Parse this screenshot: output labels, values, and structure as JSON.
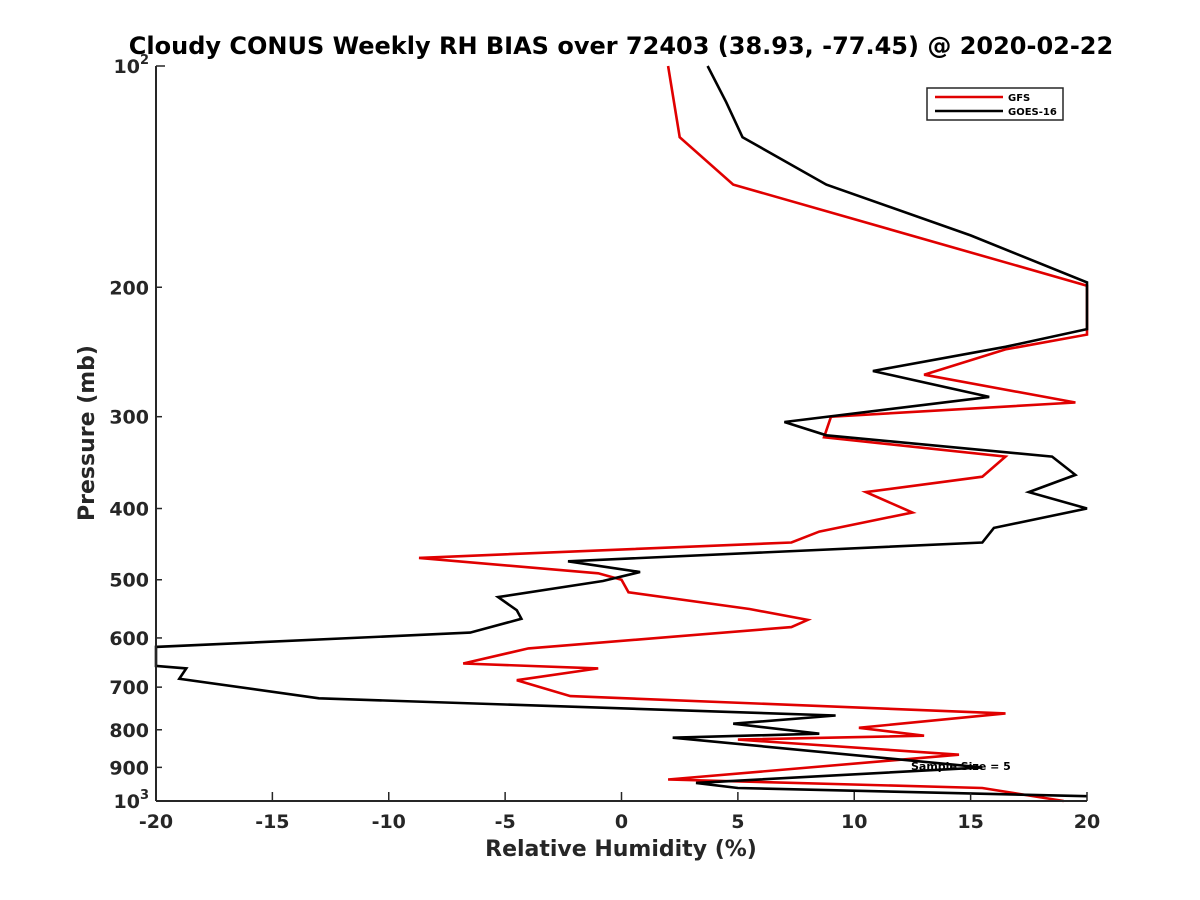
{
  "chart_data": {
    "type": "line",
    "title": "Cloudy CONUS Weekly RH BIAS over 72403 (38.93, -77.45) @ 2020-02-22",
    "xlabel": "Relative Humidity (%)",
    "ylabel": "Pressure (mb)",
    "xlim": [
      -20,
      20
    ],
    "ylim": [
      100,
      1000
    ],
    "y_scale": "log",
    "y_reversed": true,
    "grid": false,
    "legend_position": "top-right",
    "x_ticks": [
      {
        "value": -20,
        "label": "-20"
      },
      {
        "value": -15,
        "label": "-15"
      },
      {
        "value": -10,
        "label": "-10"
      },
      {
        "value": -5,
        "label": "-5"
      },
      {
        "value": 0,
        "label": "0"
      },
      {
        "value": 5,
        "label": "5"
      },
      {
        "value": 10,
        "label": "10"
      },
      {
        "value": 15,
        "label": "15"
      },
      {
        "value": 20,
        "label": "20"
      }
    ],
    "y_ticks": [
      {
        "value": 100,
        "base": "10",
        "exp": "2"
      },
      {
        "value": 200,
        "base": "200",
        "exp": ""
      },
      {
        "value": 300,
        "base": "300",
        "exp": ""
      },
      {
        "value": 400,
        "base": "400",
        "exp": ""
      },
      {
        "value": 500,
        "base": "500",
        "exp": ""
      },
      {
        "value": 600,
        "base": "600",
        "exp": ""
      },
      {
        "value": 700,
        "base": "700",
        "exp": ""
      },
      {
        "value": 800,
        "base": "800",
        "exp": ""
      },
      {
        "value": 900,
        "base": "900",
        "exp": ""
      },
      {
        "value": 1000,
        "base": "10",
        "exp": "3"
      }
    ],
    "series": [
      {
        "name": "GFS",
        "color": "#e00000",
        "points": [
          [
            2.0,
            100
          ],
          [
            2.5,
            125
          ],
          [
            4.8,
            145
          ],
          [
            20,
            199
          ],
          [
            20,
            232
          ],
          [
            16.5,
            243
          ],
          [
            13.0,
            263
          ],
          [
            19.5,
            287
          ],
          [
            9.0,
            300
          ],
          [
            8.7,
            320
          ],
          [
            16.5,
            340
          ],
          [
            15.5,
            362
          ],
          [
            10.5,
            380
          ],
          [
            12.5,
            405
          ],
          [
            8.5,
            430
          ],
          [
            7.3,
            445
          ],
          [
            -8.7,
            467
          ],
          [
            -1.0,
            490
          ],
          [
            0,
            500
          ],
          [
            0.3,
            520
          ],
          [
            5.5,
            548
          ],
          [
            8.0,
            567
          ],
          [
            7.3,
            580
          ],
          [
            -4.0,
            620
          ],
          [
            -6.8,
            650
          ],
          [
            -1.0,
            660
          ],
          [
            -4.5,
            685
          ],
          [
            -2.2,
            720
          ],
          [
            16.5,
            760
          ],
          [
            10.2,
            795
          ],
          [
            13.0,
            815
          ],
          [
            5.0,
            825
          ],
          [
            14.5,
            865
          ],
          [
            2.0,
            935
          ],
          [
            15.5,
            960
          ],
          [
            19.0,
            1000
          ]
        ]
      },
      {
        "name": "GOES-16",
        "color": "#000000",
        "points": [
          [
            3.7,
            100
          ],
          [
            4.5,
            112
          ],
          [
            5.2,
            125
          ],
          [
            8.8,
            145
          ],
          [
            15,
            170
          ],
          [
            20,
            197
          ],
          [
            20,
            228
          ],
          [
            16.5,
            241
          ],
          [
            10.8,
            260
          ],
          [
            15.8,
            282
          ],
          [
            7.0,
            305
          ],
          [
            8.8,
            318
          ],
          [
            18.5,
            340
          ],
          [
            19.5,
            360
          ],
          [
            17.5,
            380
          ],
          [
            20,
            400
          ],
          [
            16.0,
            425
          ],
          [
            15.5,
            445
          ],
          [
            -2.3,
            472
          ],
          [
            0.8,
            488
          ],
          [
            -0.8,
            502
          ],
          [
            -5.3,
            528
          ],
          [
            -4.5,
            550
          ],
          [
            -4.3,
            565
          ],
          [
            -6.5,
            590
          ],
          [
            -20,
            617
          ],
          [
            -20,
            655
          ],
          [
            -18.7,
            660
          ],
          [
            -19.0,
            682
          ],
          [
            -13.0,
            725
          ],
          [
            9.2,
            765
          ],
          [
            4.8,
            785
          ],
          [
            8.5,
            810
          ],
          [
            2.2,
            820
          ],
          [
            15.5,
            900
          ],
          [
            3.2,
            945
          ],
          [
            5.0,
            960
          ],
          [
            20,
            985
          ]
        ]
      }
    ],
    "annotation": "Sample Size = 5"
  }
}
